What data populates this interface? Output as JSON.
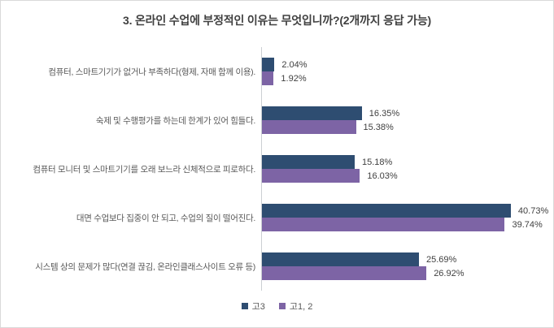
{
  "chart_data": {
    "type": "bar",
    "orientation": "horizontal",
    "title": "3. 온라인 수업에 부정적인 이유는 무엇입니까?(2개까지 응답 가능)",
    "categories": [
      "컴퓨터, 스마트기기가 없거나 부족하다(형제, 자매 함께 이용).",
      "숙제 및 수행평가를 하는데 한계가 있어 힘들다.",
      "컴퓨터 모니터 및 스마트기기를 오래 보느라 신체적으로 피로하다.",
      "대면 수업보다 집중이 안 되고, 수업의 질이 떨어진다.",
      "시스템 상의 문제가 많다(연결 끊김, 온라인클래스사이트 오류 등)"
    ],
    "series": [
      {
        "name": "고3",
        "color": "#2E4D71",
        "values": [
          2.04,
          16.35,
          15.18,
          40.73,
          25.69
        ]
      },
      {
        "name": "고1, 2",
        "color": "#7D64A5",
        "values": [
          1.92,
          15.38,
          16.03,
          39.74,
          26.92
        ]
      }
    ],
    "value_label_format": "percent_2dp",
    "xlim": [
      0,
      45
    ],
    "grid": false,
    "legend_position": "bottom"
  },
  "style": {
    "background": "#FFFFFF",
    "frame_border": "#D9D9D9",
    "axis_line": "#CBCFD3",
    "title_text": "#404040",
    "category_text": "#595959",
    "value_text": "#404040"
  }
}
